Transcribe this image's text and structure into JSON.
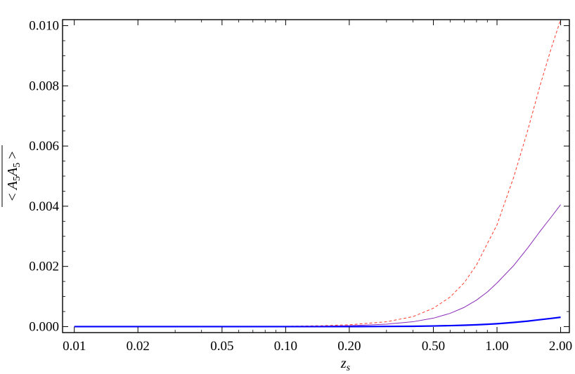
{
  "chart_data": {
    "type": "line",
    "title": "",
    "xlabel": "z_s",
    "ylabel": "<A5A5> (overlined)",
    "xscale": "log",
    "xlim": [
      0.0088,
      2.2
    ],
    "ylim": [
      -0.0002,
      0.0102
    ],
    "xticks": [
      0.01,
      0.02,
      0.05,
      0.1,
      0.2,
      0.5,
      1.0,
      2.0
    ],
    "xtick_labels": [
      "0.01",
      "0.02",
      "0.05",
      "0.10",
      "0.20",
      "0.50",
      "1.00",
      "2.00"
    ],
    "yticks": [
      0.0,
      0.002,
      0.004,
      0.006,
      0.008,
      0.01
    ],
    "ytick_labels": [
      "0.000",
      "0.002",
      "0.004",
      "0.006",
      "0.008",
      "0.010"
    ],
    "grid": false,
    "legend": "none",
    "series": [
      {
        "style": "dashed",
        "color": "#ff3a2a",
        "x": [
          0.01,
          0.05,
          0.1,
          0.15,
          0.2,
          0.3,
          0.4,
          0.5,
          0.6,
          0.7,
          0.8,
          0.9,
          1.0,
          1.2,
          1.4,
          1.6,
          1.8,
          2.0
        ],
        "y": [
          0.0,
          0.0,
          1e-05,
          3e-05,
          6e-05,
          0.00016,
          0.00033,
          0.00061,
          0.00098,
          0.00146,
          0.00205,
          0.00276,
          0.00338,
          0.00497,
          0.00654,
          0.00802,
          0.00922,
          0.0102
        ]
      },
      {
        "style": "solid-thin",
        "color": "#8a2bb8",
        "x": [
          0.01,
          0.05,
          0.1,
          0.15,
          0.2,
          0.3,
          0.4,
          0.5,
          0.6,
          0.7,
          0.8,
          0.9,
          1.0,
          1.2,
          1.4,
          1.6,
          1.8,
          2.0
        ],
        "y": [
          0.0,
          0.0,
          0.0,
          1e-05,
          3e-05,
          8e-05,
          0.00016,
          0.00028,
          0.00044,
          0.00064,
          0.00088,
          0.00115,
          0.00145,
          0.00203,
          0.00262,
          0.00317,
          0.00363,
          0.00405
        ]
      },
      {
        "style": "solid-thick",
        "color": "#0000ff",
        "x": [
          0.01,
          0.1,
          0.2,
          0.3,
          0.4,
          0.5,
          0.6,
          0.7,
          0.8,
          0.9,
          1.0,
          1.2,
          1.4,
          1.6,
          1.8,
          2.0
        ],
        "y": [
          0.0,
          0.0,
          0.0,
          5e-06,
          1e-05,
          2e-05,
          3.2e-05,
          4.5e-05,
          6e-05,
          7.7e-05,
          9.5e-05,
          0.000138,
          0.000182,
          0.00023,
          0.00027,
          0.00031
        ]
      }
    ]
  }
}
